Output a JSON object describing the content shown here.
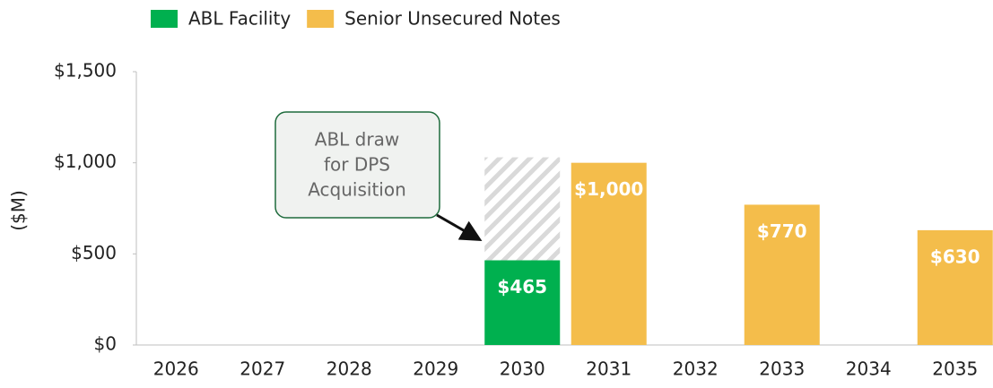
{
  "chart_data": {
    "type": "bar",
    "stacked": true,
    "ylabel": "($M)",
    "categories": [
      "2026",
      "2027",
      "2028",
      "2029",
      "2030",
      "2031",
      "2032",
      "2033",
      "2034",
      "2035"
    ],
    "series": [
      {
        "name": "ABL Facility",
        "color": "#00b04f",
        "values": [
          null,
          null,
          null,
          null,
          465,
          null,
          null,
          null,
          null,
          null
        ],
        "value_labels": [
          null,
          null,
          null,
          null,
          "$465",
          null,
          null,
          null,
          null,
          null
        ]
      },
      {
        "name": "Senior Unsecured Notes",
        "color": "#f4bd4b",
        "values": [
          null,
          null,
          null,
          null,
          null,
          1000,
          null,
          770,
          null,
          630
        ],
        "value_labels": [
          null,
          null,
          null,
          null,
          null,
          "$1,000",
          null,
          "$770",
          null,
          "$630"
        ]
      }
    ],
    "annotation": {
      "lines": [
        "ABL draw",
        "for DPS",
        "Acquisition"
      ],
      "category": "2030",
      "value": 565
    },
    "ylim": [
      0,
      1500
    ],
    "yticks": [
      {
        "value": 0,
        "label": "$0"
      },
      {
        "value": 500,
        "label": "$500"
      },
      {
        "value": 1000,
        "label": "$1,000"
      },
      {
        "value": 1500,
        "label": "$1,500"
      }
    ],
    "legend": "top-left",
    "grid": false
  }
}
